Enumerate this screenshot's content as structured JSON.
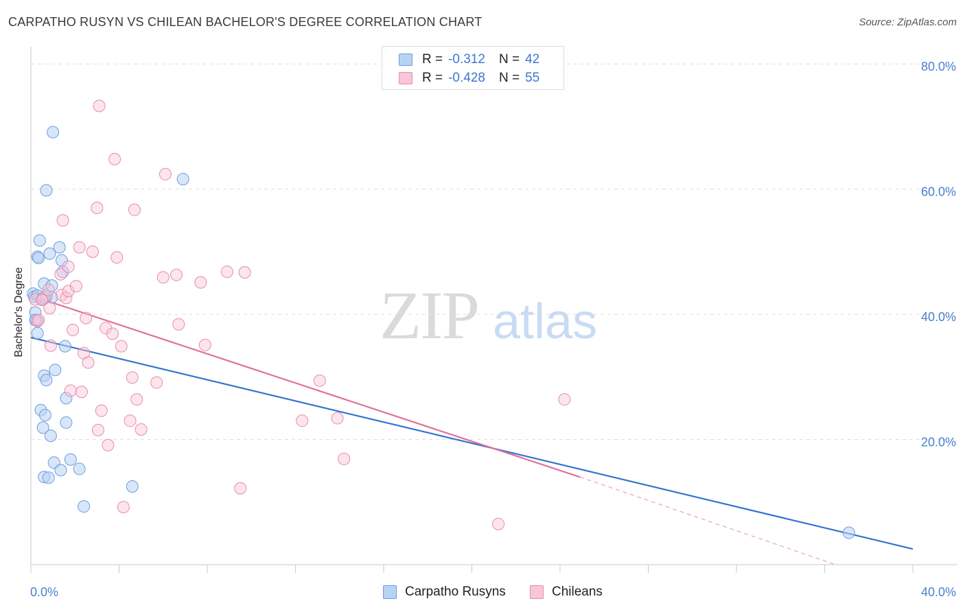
{
  "header": {
    "title": "CARPATHO RUSYN VS CHILEAN BACHELOR'S DEGREE CORRELATION CHART",
    "source": "Source: ZipAtlas.com"
  },
  "watermark": {
    "zip": "ZIP",
    "atlas": "atlas"
  },
  "legend_top": {
    "rows": [
      {
        "r_label": "R = ",
        "r_value": "-0.312",
        "n_label": "N = ",
        "n_value": "42"
      },
      {
        "r_label": "R = ",
        "r_value": "-0.428",
        "n_label": "N = ",
        "n_value": "55"
      }
    ]
  },
  "legend_bottom": {
    "items": [
      {
        "label": "Carpatho Rusyns"
      },
      {
        "label": "Chileans"
      }
    ]
  },
  "colors": {
    "blue_fill": "#b8d2f2",
    "blue_stroke": "#6a9de0",
    "blue_line": "#3274d0",
    "pink_fill": "#f8c6d6",
    "pink_stroke": "#e88aaa",
    "pink_line": "#e0709a"
  },
  "chart_data": {
    "type": "scatter",
    "title": "CARPATHO RUSYN VS CHILEAN BACHELOR'S DEGREE CORRELATION CHART",
    "xlabel": "",
    "ylabel": "Bachelor's Degree",
    "xlim": [
      0,
      40
    ],
    "ylim": [
      0,
      82
    ],
    "x_ticks": [
      "0.0%",
      "40.0%"
    ],
    "y_ticks": [
      "20.0%",
      "40.0%",
      "60.0%",
      "80.0%"
    ],
    "grid": true,
    "series": [
      {
        "name": "Carpatho Rusyns",
        "r": -0.312,
        "n": 42,
        "trend": {
          "x": [
            0,
            40
          ],
          "y": [
            36.3,
            2.5
          ]
        },
        "points": [
          [
            0.1,
            43.3
          ],
          [
            0.15,
            42.8
          ],
          [
            0.2,
            40.3
          ],
          [
            0.25,
            39.0
          ],
          [
            0.3,
            37.0
          ],
          [
            0.3,
            49.2
          ],
          [
            0.35,
            49.0
          ],
          [
            0.4,
            51.8
          ],
          [
            0.45,
            24.7
          ],
          [
            0.55,
            21.9
          ],
          [
            0.6,
            44.9
          ],
          [
            0.6,
            30.2
          ],
          [
            0.6,
            14.0
          ],
          [
            0.65,
            23.9
          ],
          [
            0.7,
            59.8
          ],
          [
            0.7,
            29.5
          ],
          [
            0.8,
            13.9
          ],
          [
            0.85,
            49.7
          ],
          [
            0.9,
            20.6
          ],
          [
            0.95,
            44.6
          ],
          [
            0.95,
            42.7
          ],
          [
            1.0,
            69.1
          ],
          [
            1.05,
            16.3
          ],
          [
            1.1,
            31.1
          ],
          [
            1.3,
            50.7
          ],
          [
            1.35,
            15.1
          ],
          [
            1.4,
            48.6
          ],
          [
            1.45,
            46.8
          ],
          [
            1.55,
            34.9
          ],
          [
            1.6,
            26.6
          ],
          [
            1.6,
            22.7
          ],
          [
            1.8,
            16.8
          ],
          [
            2.2,
            15.3
          ],
          [
            2.4,
            9.3
          ],
          [
            4.6,
            12.5
          ],
          [
            6.9,
            61.6
          ],
          [
            37.1,
            5.1
          ],
          [
            0.2,
            39.1
          ],
          [
            0.5,
            42.5
          ],
          [
            0.3,
            43.0
          ],
          [
            0.55,
            42.4
          ],
          [
            0.7,
            42.9
          ]
        ]
      },
      {
        "name": "Chileans",
        "r": -0.428,
        "n": 55,
        "trend": {
          "x": [
            0,
            24.9
          ],
          "y": [
            43.0,
            14.0
          ]
        },
        "trend_dashed": {
          "x": [
            24.9,
            36.5
          ],
          "y": [
            14.0,
            0.0
          ]
        },
        "points": [
          [
            0.2,
            42.4
          ],
          [
            0.3,
            38.9
          ],
          [
            0.35,
            39.1
          ],
          [
            0.6,
            42.7
          ],
          [
            0.8,
            43.9
          ],
          [
            0.85,
            41.0
          ],
          [
            0.9,
            35.0
          ],
          [
            1.35,
            46.4
          ],
          [
            1.4,
            43.1
          ],
          [
            1.45,
            55.0
          ],
          [
            1.6,
            42.6
          ],
          [
            1.7,
            43.7
          ],
          [
            1.7,
            47.6
          ],
          [
            1.8,
            27.8
          ],
          [
            1.9,
            37.5
          ],
          [
            2.05,
            44.5
          ],
          [
            2.2,
            50.7
          ],
          [
            2.3,
            27.6
          ],
          [
            2.4,
            33.8
          ],
          [
            2.5,
            39.4
          ],
          [
            2.6,
            32.3
          ],
          [
            2.8,
            50.0
          ],
          [
            3.0,
            57.0
          ],
          [
            3.05,
            21.5
          ],
          [
            3.1,
            73.3
          ],
          [
            3.2,
            24.6
          ],
          [
            3.4,
            37.8
          ],
          [
            3.5,
            19.1
          ],
          [
            3.7,
            36.9
          ],
          [
            3.8,
            64.8
          ],
          [
            3.9,
            49.1
          ],
          [
            4.1,
            34.9
          ],
          [
            4.2,
            9.2
          ],
          [
            4.5,
            23.0
          ],
          [
            4.6,
            29.9
          ],
          [
            4.7,
            56.7
          ],
          [
            4.8,
            26.4
          ],
          [
            5.0,
            21.6
          ],
          [
            5.7,
            29.1
          ],
          [
            6.1,
            62.4
          ],
          [
            6.0,
            45.9
          ],
          [
            6.6,
            46.3
          ],
          [
            6.7,
            38.4
          ],
          [
            7.7,
            45.1
          ],
          [
            7.9,
            35.1
          ],
          [
            8.9,
            46.8
          ],
          [
            9.5,
            12.2
          ],
          [
            9.7,
            46.7
          ],
          [
            12.3,
            23.0
          ],
          [
            13.1,
            29.4
          ],
          [
            13.9,
            23.4
          ],
          [
            14.2,
            16.9
          ],
          [
            21.2,
            6.5
          ],
          [
            24.2,
            26.4
          ],
          [
            0.5,
            42.3
          ]
        ]
      }
    ]
  }
}
